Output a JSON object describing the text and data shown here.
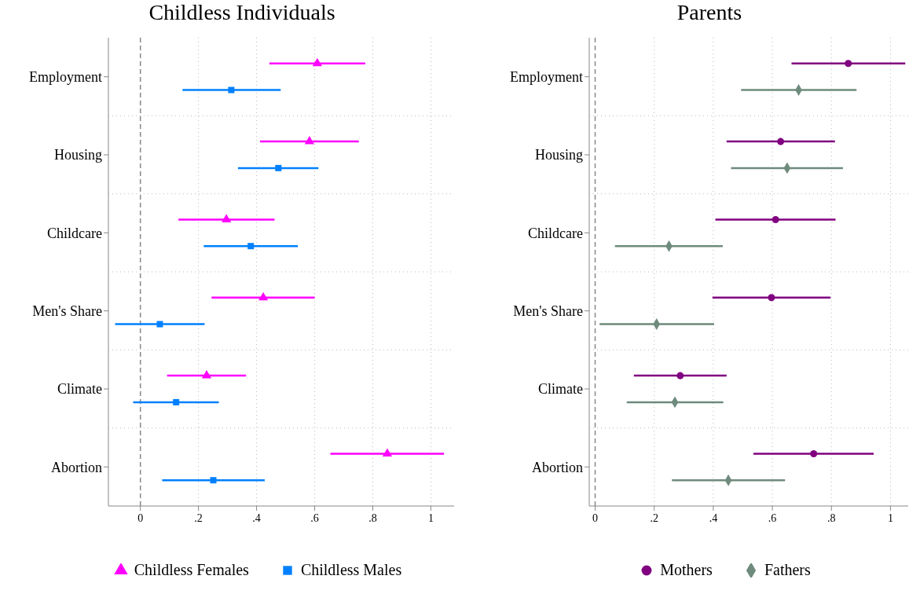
{
  "chart_data": [
    {
      "type": "scatter",
      "title": "Childless Individuals",
      "orientation": "horizontal",
      "categories": [
        "Employment",
        "Housing",
        "Childcare",
        "Men's Share",
        "Climate",
        "Abortion"
      ],
      "series": [
        {
          "name": "Childless Females",
          "color": "#ff00ff",
          "marker": "triangle",
          "values": [
            0.609,
            0.582,
            0.296,
            0.423,
            0.228,
            0.85
          ],
          "errors": [
            [
              0.444,
              0.774
            ],
            [
              0.412,
              0.752
            ],
            [
              0.131,
              0.462
            ],
            [
              0.245,
              0.6
            ],
            [
              0.092,
              0.364
            ],
            [
              0.654,
              1.045
            ]
          ]
        },
        {
          "name": "Childless Males",
          "color": "#0080ff",
          "marker": "square",
          "values": [
            0.313,
            0.475,
            0.38,
            0.067,
            0.123,
            0.251
          ],
          "errors": [
            [
              0.145,
              0.483
            ],
            [
              0.336,
              0.613
            ],
            [
              0.218,
              0.542
            ],
            [
              -0.087,
              0.221
            ],
            [
              -0.025,
              0.27
            ],
            [
              0.075,
              0.428
            ]
          ]
        }
      ],
      "xlim": [
        -0.11,
        1.08
      ],
      "xticks": [
        {
          "value": 0,
          "label": "0"
        },
        {
          "value": 0.2,
          "label": ".2"
        },
        {
          "value": 0.4,
          "label": ".4"
        },
        {
          "value": 0.6,
          "label": ".6"
        },
        {
          "value": 0.8,
          "label": ".8"
        },
        {
          "value": 1,
          "label": "1"
        }
      ],
      "grid": true,
      "legend": "bottom",
      "ref_lines": [
        {
          "axis": "x",
          "value": 0,
          "line_style": "dashed",
          "color": "#888888"
        }
      ]
    },
    {
      "type": "scatter",
      "title": "Parents",
      "orientation": "horizontal",
      "categories": [
        "Employment",
        "Housing",
        "Childcare",
        "Men's Share",
        "Climate",
        "Abortion"
      ],
      "series": [
        {
          "name": "Mothers",
          "color": "#800080",
          "marker": "circle",
          "values": [
            0.857,
            0.628,
            0.611,
            0.597,
            0.288,
            0.74
          ],
          "errors": [
            [
              0.665,
              1.05
            ],
            [
              0.445,
              0.812
            ],
            [
              0.407,
              0.814
            ],
            [
              0.397,
              0.797
            ],
            [
              0.131,
              0.445
            ],
            [
              0.536,
              0.943
            ]
          ]
        },
        {
          "name": "Fathers",
          "color": "#6e8b7d",
          "marker": "diamond",
          "values": [
            0.689,
            0.65,
            0.25,
            0.208,
            0.27,
            0.451
          ],
          "errors": [
            [
              0.494,
              0.885
            ],
            [
              0.46,
              0.839
            ],
            [
              0.067,
              0.432
            ],
            [
              0.015,
              0.403
            ],
            [
              0.107,
              0.434
            ],
            [
              0.26,
              0.643
            ]
          ]
        }
      ],
      "xlim": [
        -0.02,
        1.06
      ],
      "xticks": [
        {
          "value": 0,
          "label": "0"
        },
        {
          "value": 0.2,
          "label": ".2"
        },
        {
          "value": 0.4,
          "label": ".4"
        },
        {
          "value": 0.6,
          "label": ".6"
        },
        {
          "value": 0.8,
          "label": ".8"
        },
        {
          "value": 1,
          "label": "1"
        }
      ],
      "grid": true,
      "legend": "bottom",
      "ref_lines": [
        {
          "axis": "x",
          "value": 0,
          "line_style": "dashed",
          "color": "#888888"
        }
      ]
    }
  ]
}
